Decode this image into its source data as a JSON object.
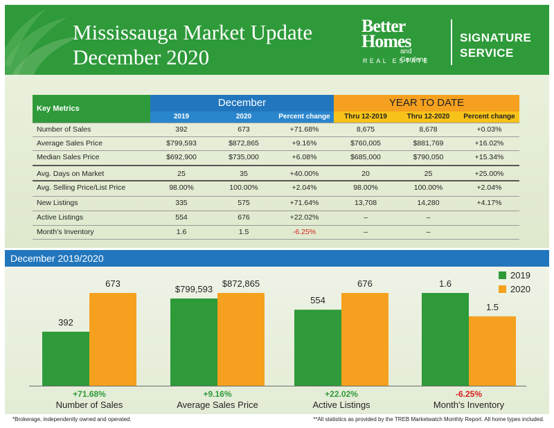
{
  "header": {
    "title_line1": "Mississauga Market Update",
    "title_line2": "December 2020",
    "brand_line1": "Better",
    "brand_line2": "Homes",
    "brand_line3": "and Gardens",
    "brand_line4": "REAL ESTATE",
    "service_line1": "SIGNATURE",
    "service_line2": "SERVICE"
  },
  "table": {
    "corner_label": "Key Metrics",
    "group1_label": "December",
    "group2_label": "YEAR TO DATE",
    "columns": [
      "2019",
      "2020",
      "Percent change",
      "Thru 12-2019",
      "Thru 12-2020",
      "Percent change"
    ],
    "rows": [
      {
        "metric": "Number of Sales",
        "values": [
          "392",
          "673",
          "+71.68%",
          "8,675",
          "8,678",
          "+0.03%"
        ]
      },
      {
        "metric": "Average Sales Price",
        "values": [
          "$799,593",
          "$872,865",
          "+9.16%",
          "$760,005",
          "$881,769",
          "+16.02%"
        ]
      },
      {
        "metric": "Median Sales Price",
        "values": [
          "$692,900",
          "$735,000",
          "+6.08%",
          "$685,000",
          "$790,050",
          "+15.34%"
        ]
      },
      {
        "metric": "Avg. Days on Market",
        "values": [
          "25",
          "35",
          "+40.00%",
          "20",
          "25",
          "+25.00%"
        ]
      },
      {
        "metric": "Avg. Selling Price/List Price",
        "values": [
          "98.00%",
          "100.00%",
          "+2.04%",
          "98.00%",
          "100.00%",
          "+2.04%"
        ]
      },
      {
        "metric": "New Listings",
        "values": [
          "335",
          "575",
          "+71.64%",
          "13,708",
          "14,280",
          "+4.17%"
        ]
      },
      {
        "metric": "Active Listings",
        "values": [
          "554",
          "676",
          "+22.02%",
          "–",
          "–",
          ""
        ]
      },
      {
        "metric": "Month’s Inventory",
        "values": [
          "1.6",
          "1.5",
          "-6.25%",
          "–",
          "–",
          ""
        ]
      }
    ]
  },
  "colors": {
    "green": "#2e9a3a",
    "orange": "#f5a11f",
    "blue": "#2176bd",
    "negative": "#d81e1e"
  },
  "chart_data": {
    "type": "bar",
    "title": "December 2019/2020",
    "categories": [
      "Number of Sales",
      "Average Sales Price",
      "Active Listings",
      "Month's Inventory"
    ],
    "series": [
      {
        "name": "2019",
        "color": "#2e9a3a",
        "values": [
          392,
          799593,
          554,
          1.6
        ],
        "labels": [
          "392",
          "$799,593",
          "554",
          "1.6"
        ]
      },
      {
        "name": "2020",
        "color": "#f5a11f",
        "values": [
          673,
          872865,
          676,
          1.5
        ],
        "labels": [
          "673",
          "$872,865",
          "676",
          "1.5"
        ]
      }
    ],
    "changes": [
      "+71.68%",
      "+9.16%",
      "+22.02%",
      "-6.25%"
    ],
    "legend": "top-right",
    "grid": false
  },
  "footnotes": {
    "left": "*Brokerage, independently owned and operated.",
    "right": "**All statistics as provided by the TREB Marketwatch Monthly Report. All home types included."
  }
}
